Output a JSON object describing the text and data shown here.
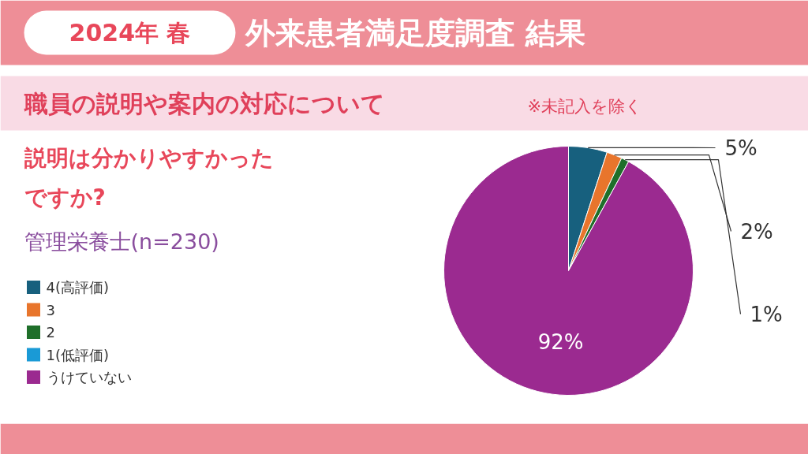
{
  "chart_data": {
    "type": "pie",
    "title": "外来患者満足度調査 結果",
    "subtitle": "職員の説明や案内の対応について",
    "annotations": [
      "2024年 春",
      "※未記入を除く",
      "説明は分かりやすかったですか?",
      "管理栄養士(n=230)"
    ],
    "categories": [
      "4(高評価)",
      "3",
      "2",
      "1(低評価)",
      "うけていない"
    ],
    "values": [
      5,
      2,
      1,
      0,
      92
    ],
    "colors": [
      "#17607e",
      "#e8752c",
      "#1f6f2a",
      "#1a9ad6",
      "#9b2a90"
    ],
    "value_labels": [
      "5%",
      "2%",
      "1%",
      null,
      "92%"
    ],
    "legend": "left"
  }
}
